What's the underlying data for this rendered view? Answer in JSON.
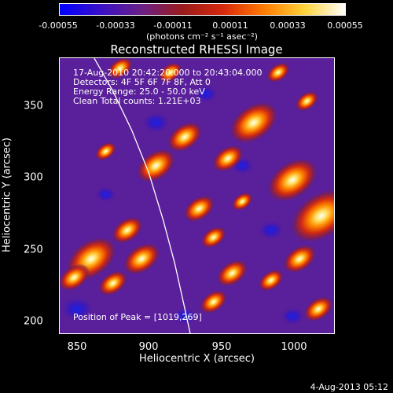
{
  "colorbar": {
    "ticks": [
      "-0.00055",
      "-0.00033",
      "-0.00011",
      "0.00011",
      "0.00033",
      "0.00055"
    ],
    "units": "(photons cm⁻² s⁻¹ asec⁻²)",
    "stops": [
      "#0000ff",
      "#3a10c6",
      "#6a2087",
      "#991b1b",
      "#d8280e",
      "#ff7a00",
      "#ffd23a",
      "#ffffff"
    ]
  },
  "title": "Reconstructed RHESSI Image",
  "info": {
    "time_range": "17-Aug-2010 20:42:20.000 to 20:43:04.000",
    "detectors": "Detectors: 4F 5F 6F 7F 8F, Att 0",
    "energy": "Energy Range: 25.0 - 50.0 keV",
    "clean": "Clean    Total counts: 1.21E+03"
  },
  "peak": "Position of Peak = [1019,269]",
  "axes": {
    "xlabel": "Heliocentric X (arcsec)",
    "ylabel": "Heliocentric Y (arcsec)",
    "xticks": [
      "850",
      "900",
      "950",
      "1000"
    ],
    "yticks": [
      "200",
      "250",
      "300",
      "350"
    ],
    "xlim": [
      838,
      1030
    ],
    "ylim": [
      192,
      385
    ]
  },
  "footer": "4-Aug-2013 05:12",
  "image": {
    "limb_curve": [
      [
        862,
        385
      ],
      [
        875,
        362
      ],
      [
        888,
        335
      ],
      [
        900,
        305
      ],
      [
        910,
        272
      ],
      [
        918,
        242
      ],
      [
        924,
        215
      ],
      [
        929,
        192
      ]
    ],
    "hot_spots": [
      [
        1020,
        275,
        3.2
      ],
      [
        1000,
        300,
        2.6
      ],
      [
        1005,
        245,
        1.7
      ],
      [
        1018,
        210,
        1.5
      ],
      [
        973,
        340,
        2.5
      ],
      [
        955,
        315,
        1.6
      ],
      [
        925,
        330,
        1.8
      ],
      [
        905,
        310,
        2.0
      ],
      [
        935,
        280,
        1.6
      ],
      [
        945,
        260,
        1.3
      ],
      [
        885,
        265,
        1.6
      ],
      [
        895,
        245,
        1.9
      ],
      [
        860,
        245,
        2.6
      ],
      [
        875,
        228,
        1.5
      ],
      [
        848,
        232,
        1.6
      ],
      [
        958,
        235,
        1.6
      ],
      [
        945,
        215,
        1.4
      ],
      [
        985,
        230,
        1.3
      ],
      [
        880,
        378,
        1.3
      ],
      [
        915,
        375,
        1.2
      ],
      [
        990,
        375,
        1.2
      ],
      [
        1010,
        355,
        1.2
      ],
      [
        870,
        320,
        1.1
      ],
      [
        965,
        285,
        1.1
      ]
    ],
    "cold_spots": [
      [
        905,
        340,
        1.2
      ],
      [
        965,
        310,
        1.0
      ],
      [
        985,
        265,
        1.1
      ],
      [
        850,
        210,
        1.4
      ],
      [
        940,
        360,
        1.0
      ],
      [
        925,
        205,
        1.0
      ],
      [
        870,
        290,
        0.9
      ],
      [
        1000,
        205,
        1.0
      ]
    ]
  }
}
